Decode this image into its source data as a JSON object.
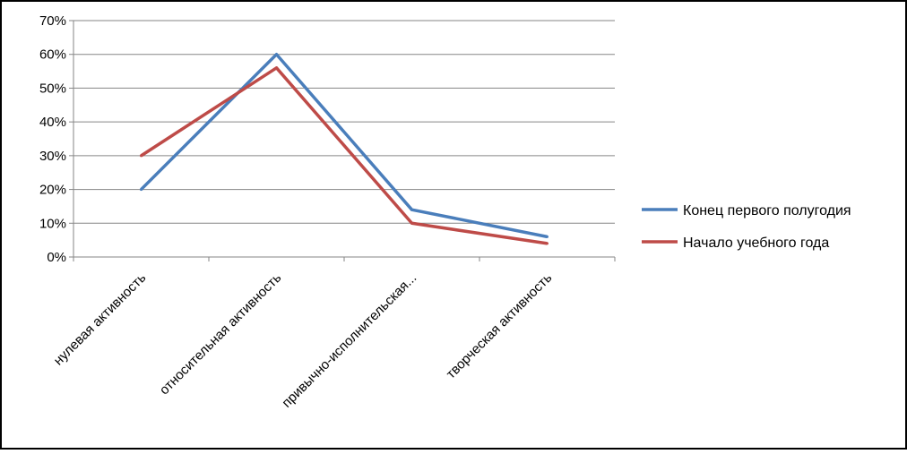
{
  "chart_data": {
    "type": "line",
    "title": "",
    "xlabel": "",
    "ylabel": "",
    "categories": [
      "нулевая активность",
      "относительная активность",
      "привычно-исполнительская...",
      "творческая активность"
    ],
    "y_ticks": [
      "0%",
      "10%",
      "20%",
      "30%",
      "40%",
      "50%",
      "60%",
      "70%"
    ],
    "ylim": [
      0,
      70
    ],
    "grid": true,
    "legend_position": "right",
    "series": [
      {
        "name": "Конец первого полугодия",
        "color": "#4a7ebb",
        "values": [
          20,
          60,
          14,
          6
        ]
      },
      {
        "name": "Начало учебного года",
        "color": "#be4b48",
        "values": [
          30,
          56,
          10,
          4
        ]
      }
    ]
  }
}
